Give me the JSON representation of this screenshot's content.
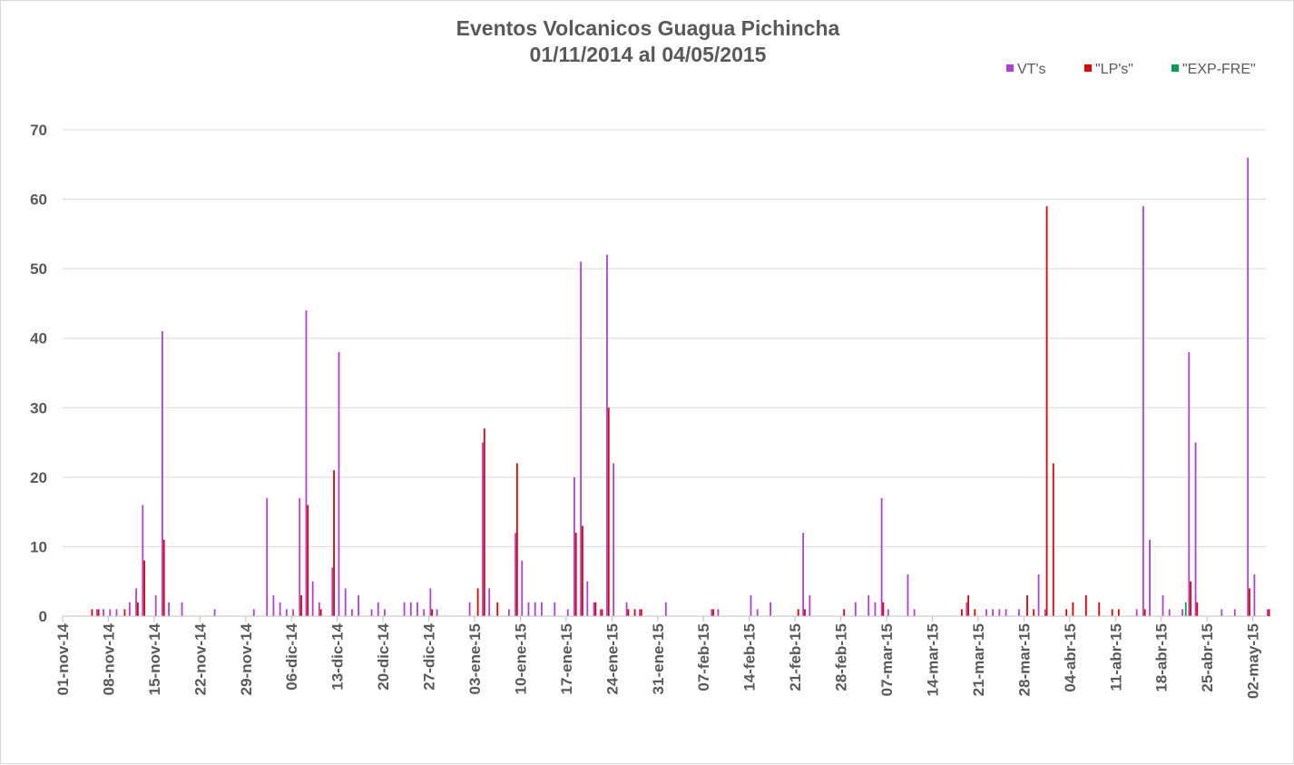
{
  "chart_data": {
    "type": "bar",
    "title": "Eventos Volcanicos Guagua Pichincha",
    "subtitle": "01/11/2014 al 04/05/2015",
    "xlabel": "",
    "ylabel": "",
    "ylim": [
      0,
      70
    ],
    "y_ticks": [
      0,
      10,
      20,
      30,
      40,
      50,
      60,
      70
    ],
    "grid": true,
    "legend_position": "top-right",
    "x_start": "2014-11-01",
    "x_end": "2015-05-04",
    "x_tick_labels": [
      "01-nov-14",
      "08-nov-14",
      "15-nov-14",
      "22-nov-14",
      "29-nov-14",
      "06-dic-14",
      "13-dic-14",
      "20-dic-14",
      "27-dic-14",
      "03-ene-15",
      "10-ene-15",
      "17-ene-15",
      "24-ene-15",
      "31-ene-15",
      "07-feb-15",
      "14-feb-15",
      "21-feb-15",
      "28-feb-15",
      "07-mar-15",
      "14-mar-15",
      "21-mar-15",
      "28-mar-15",
      "04-abr-15",
      "11-abr-15",
      "18-abr-15",
      "25-abr-15",
      "02-may-15"
    ],
    "series": [
      {
        "name": "VT's",
        "color": "#b040d0",
        "points": [
          [
            "2014-11-06",
            1
          ],
          [
            "2014-11-07",
            1
          ],
          [
            "2014-11-08",
            1
          ],
          [
            "2014-11-09",
            1
          ],
          [
            "2014-11-11",
            2
          ],
          [
            "2014-11-12",
            4
          ],
          [
            "2014-11-13",
            16
          ],
          [
            "2014-11-15",
            3
          ],
          [
            "2014-11-16",
            41
          ],
          [
            "2014-11-17",
            2
          ],
          [
            "2014-11-19",
            2
          ],
          [
            "2014-11-24",
            1
          ],
          [
            "2014-11-30",
            1
          ],
          [
            "2014-12-02",
            17
          ],
          [
            "2014-12-03",
            3
          ],
          [
            "2014-12-04",
            2
          ],
          [
            "2014-12-05",
            1
          ],
          [
            "2014-12-06",
            1
          ],
          [
            "2014-12-07",
            17
          ],
          [
            "2014-12-08",
            44
          ],
          [
            "2014-12-09",
            5
          ],
          [
            "2014-12-10",
            2
          ],
          [
            "2014-12-12",
            7
          ],
          [
            "2014-12-13",
            38
          ],
          [
            "2014-12-14",
            4
          ],
          [
            "2014-12-15",
            1
          ],
          [
            "2014-12-16",
            3
          ],
          [
            "2014-12-18",
            1
          ],
          [
            "2014-12-19",
            2
          ],
          [
            "2014-12-20",
            1
          ],
          [
            "2014-12-23",
            2
          ],
          [
            "2014-12-24",
            2
          ],
          [
            "2014-12-25",
            2
          ],
          [
            "2014-12-26",
            1
          ],
          [
            "2014-12-27",
            4
          ],
          [
            "2014-12-28",
            1
          ],
          [
            "2015-01-02",
            2
          ],
          [
            "2015-01-04",
            25
          ],
          [
            "2015-01-05",
            4
          ],
          [
            "2015-01-08",
            1
          ],
          [
            "2015-01-09",
            12
          ],
          [
            "2015-01-10",
            8
          ],
          [
            "2015-01-11",
            2
          ],
          [
            "2015-01-12",
            2
          ],
          [
            "2015-01-13",
            2
          ],
          [
            "2015-01-15",
            2
          ],
          [
            "2015-01-17",
            1
          ],
          [
            "2015-01-18",
            20
          ],
          [
            "2015-01-19",
            51
          ],
          [
            "2015-01-20",
            5
          ],
          [
            "2015-01-21",
            2
          ],
          [
            "2015-01-22",
            1
          ],
          [
            "2015-01-23",
            52
          ],
          [
            "2015-01-24",
            22
          ],
          [
            "2015-01-26",
            2
          ],
          [
            "2015-01-28",
            1
          ],
          [
            "2015-02-01",
            2
          ],
          [
            "2015-02-08",
            1
          ],
          [
            "2015-02-09",
            1
          ],
          [
            "2015-02-14",
            3
          ],
          [
            "2015-02-15",
            1
          ],
          [
            "2015-02-17",
            2
          ],
          [
            "2015-02-22",
            12
          ],
          [
            "2015-02-23",
            3
          ],
          [
            "2015-03-02",
            2
          ],
          [
            "2015-03-04",
            3
          ],
          [
            "2015-03-05",
            2
          ],
          [
            "2015-03-06",
            17
          ],
          [
            "2015-03-07",
            1
          ],
          [
            "2015-03-10",
            6
          ],
          [
            "2015-03-11",
            1
          ],
          [
            "2015-03-19",
            2
          ],
          [
            "2015-03-22",
            1
          ],
          [
            "2015-03-23",
            1
          ],
          [
            "2015-03-24",
            1
          ],
          [
            "2015-03-25",
            1
          ],
          [
            "2015-03-27",
            1
          ],
          [
            "2015-03-30",
            6
          ],
          [
            "2015-03-31",
            1
          ],
          [
            "2015-04-14",
            1
          ],
          [
            "2015-04-15",
            59
          ],
          [
            "2015-04-16",
            11
          ],
          [
            "2015-04-18",
            3
          ],
          [
            "2015-04-19",
            1
          ],
          [
            "2015-04-21",
            1
          ],
          [
            "2015-04-22",
            38
          ],
          [
            "2015-04-23",
            25
          ],
          [
            "2015-04-27",
            1
          ],
          [
            "2015-04-29",
            1
          ],
          [
            "2015-05-01",
            66
          ],
          [
            "2015-05-02",
            6
          ],
          [
            "2015-05-04",
            1
          ]
        ]
      },
      {
        "name": "\"LP's\"",
        "color": "#e00000",
        "points": [
          [
            "2014-11-05",
            1
          ],
          [
            "2014-11-06",
            1
          ],
          [
            "2014-11-10",
            1
          ],
          [
            "2014-11-12",
            2
          ],
          [
            "2014-11-13",
            8
          ],
          [
            "2014-11-16",
            11
          ],
          [
            "2014-12-07",
            3
          ],
          [
            "2014-12-08",
            16
          ],
          [
            "2014-12-10",
            1
          ],
          [
            "2014-12-12",
            21
          ],
          [
            "2014-12-27",
            1
          ],
          [
            "2015-01-03",
            4
          ],
          [
            "2015-01-04",
            27
          ],
          [
            "2015-01-06",
            2
          ],
          [
            "2015-01-09",
            22
          ],
          [
            "2015-01-18",
            12
          ],
          [
            "2015-01-19",
            13
          ],
          [
            "2015-01-21",
            2
          ],
          [
            "2015-01-22",
            1
          ],
          [
            "2015-01-23",
            30
          ],
          [
            "2015-01-26",
            1
          ],
          [
            "2015-01-27",
            1
          ],
          [
            "2015-01-28",
            1
          ],
          [
            "2015-02-08",
            1
          ],
          [
            "2015-02-21",
            1
          ],
          [
            "2015-02-22",
            1
          ],
          [
            "2015-02-28",
            1
          ],
          [
            "2015-03-06",
            2
          ],
          [
            "2015-03-18",
            1
          ],
          [
            "2015-03-19",
            3
          ],
          [
            "2015-03-20",
            1
          ],
          [
            "2015-03-28",
            3
          ],
          [
            "2015-03-29",
            1
          ],
          [
            "2015-03-31",
            59
          ],
          [
            "2015-04-01",
            22
          ],
          [
            "2015-04-03",
            1
          ],
          [
            "2015-04-04",
            2
          ],
          [
            "2015-04-06",
            3
          ],
          [
            "2015-04-08",
            2
          ],
          [
            "2015-04-10",
            1
          ],
          [
            "2015-04-11",
            1
          ],
          [
            "2015-04-15",
            1
          ],
          [
            "2015-04-22",
            5
          ],
          [
            "2015-04-23",
            2
          ],
          [
            "2015-05-01",
            4
          ],
          [
            "2015-05-04",
            1
          ]
        ]
      },
      {
        "name": "\"EXP-FRE\"",
        "color": "#00a050",
        "points": [
          [
            "2015-04-21",
            2
          ]
        ]
      }
    ]
  }
}
